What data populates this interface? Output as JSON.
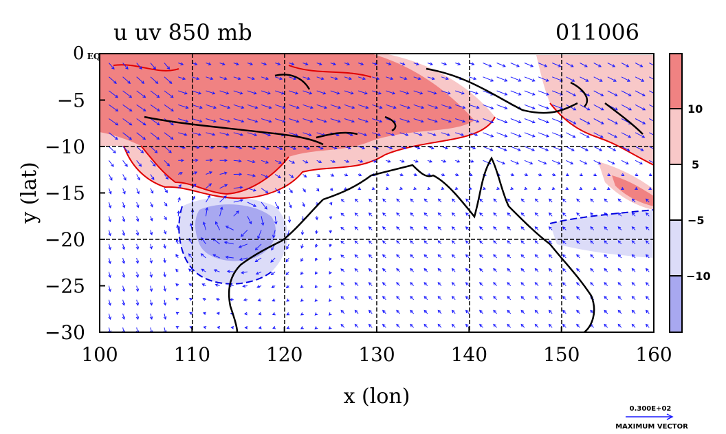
{
  "title_left": "u uv 850 mb",
  "title_right": "011006",
  "x_axis": {
    "label": "x (lon)",
    "ticks": [
      100,
      110,
      120,
      130,
      140,
      150,
      160
    ],
    "range": [
      100,
      160
    ]
  },
  "y_axis": {
    "label": "y (lat)",
    "ticks": [
      "0 EQ",
      "−5",
      "−10",
      "−15",
      "−20",
      "−25",
      "−30"
    ],
    "tick_values": [
      0,
      -5,
      -10,
      -15,
      -20,
      -25,
      -30
    ],
    "range": [
      -30,
      0
    ]
  },
  "colorbar": {
    "labels": [
      "10",
      "5",
      "−5",
      "−10"
    ],
    "label_values": [
      10,
      5,
      -5,
      -10
    ],
    "colors": [
      "#f08282",
      "#f8c8c8",
      "#ffffff",
      "#dcdcf8",
      "#a8a8f0"
    ]
  },
  "vector_legend": {
    "value": "0.300E+02",
    "caption": "MAXIMUM VECTOR"
  },
  "colors": {
    "positive_strong": "#f08282",
    "positive_weak": "#f8c8c8",
    "negative_weak": "#dcdcf8",
    "negative_strong": "#a8a8f0",
    "contour_positive": "#e00000",
    "contour_negative": "#0000e0",
    "vectors": "#1a1aff",
    "coastline": "#000000"
  }
}
